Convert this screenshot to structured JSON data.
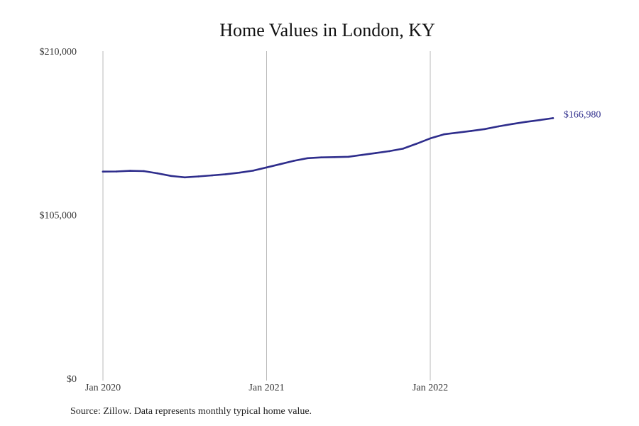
{
  "chart_data": {
    "type": "line",
    "title": "Home Values in London, KY",
    "xlabel": "",
    "ylabel": "",
    "x_tick_labels": [
      "Jan 2020",
      "Jan 2021",
      "Jan 2022"
    ],
    "y_tick_labels": [
      "$210,000",
      "$105,000",
      "$0"
    ],
    "y_ticks": [
      210000,
      105000,
      0
    ],
    "ylim": [
      0,
      210000
    ],
    "x_range": [
      "2020-01",
      "2022-10"
    ],
    "grid": "vertical lines at year starts",
    "legend": "none",
    "line_color": "#2e2d8c",
    "end_label": "$166,980",
    "series": [
      {
        "x": [
          "2020-01",
          "2020-02",
          "2020-03",
          "2020-04",
          "2020-05",
          "2020-06",
          "2020-07",
          "2020-08",
          "2020-09",
          "2020-10",
          "2020-11",
          "2020-12",
          "2021-01",
          "2021-02",
          "2021-03",
          "2021-04",
          "2021-05",
          "2021-06",
          "2021-07",
          "2021-08",
          "2021-09",
          "2021-10",
          "2021-11",
          "2021-12",
          "2022-01",
          "2022-02",
          "2022-03",
          "2022-04",
          "2022-05",
          "2022-06",
          "2022-07",
          "2022-08",
          "2022-09",
          "2022-10"
        ],
        "values": [
          132700,
          132800,
          133200,
          133000,
          131600,
          129900,
          129000,
          129600,
          130300,
          131000,
          132000,
          133300,
          135400,
          137500,
          139600,
          141300,
          141800,
          142000,
          142200,
          143400,
          144600,
          145800,
          147400,
          150600,
          154000,
          156600,
          157700,
          158800,
          160000,
          161700,
          163200,
          164600,
          165700,
          166980
        ]
      }
    ]
  },
  "footer": {
    "source": "Source: Zillow. Data represents monthly typical home value."
  }
}
